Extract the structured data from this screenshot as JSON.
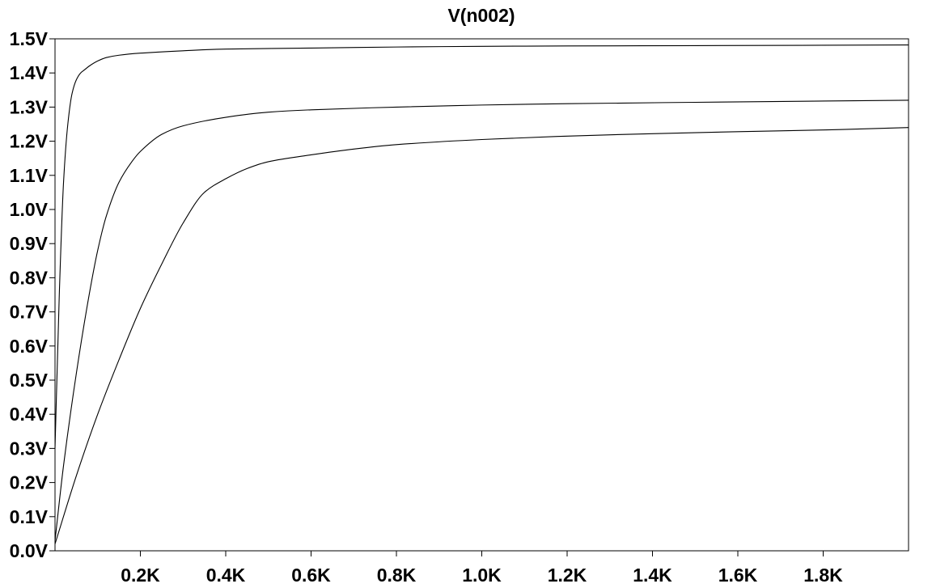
{
  "chart_data": {
    "type": "line",
    "title": "V(n002)",
    "xlabel": "",
    "ylabel": "",
    "xlim": [
      0,
      2000
    ],
    "ylim": [
      0,
      1.5
    ],
    "x_ticks": [
      {
        "value": 200,
        "label": "0.2K"
      },
      {
        "value": 400,
        "label": "0.4K"
      },
      {
        "value": 600,
        "label": "0.6K"
      },
      {
        "value": 800,
        "label": "0.8K"
      },
      {
        "value": 1000,
        "label": "1.0K"
      },
      {
        "value": 1200,
        "label": "1.2K"
      },
      {
        "value": 1400,
        "label": "1.4K"
      },
      {
        "value": 1600,
        "label": "1.6K"
      },
      {
        "value": 1800,
        "label": "1.8K"
      }
    ],
    "y_ticks": [
      {
        "value": 0.0,
        "label": "0.0V"
      },
      {
        "value": 0.1,
        "label": "0.1V"
      },
      {
        "value": 0.2,
        "label": "0.2V"
      },
      {
        "value": 0.3,
        "label": "0.3V"
      },
      {
        "value": 0.4,
        "label": "0.4V"
      },
      {
        "value": 0.5,
        "label": "0.5V"
      },
      {
        "value": 0.6,
        "label": "0.6V"
      },
      {
        "value": 0.7,
        "label": "0.7V"
      },
      {
        "value": 0.8,
        "label": "0.8V"
      },
      {
        "value": 0.9,
        "label": "0.9V"
      },
      {
        "value": 1.0,
        "label": "1.0V"
      },
      {
        "value": 1.1,
        "label": "1.1V"
      },
      {
        "value": 1.2,
        "label": "1.2V"
      },
      {
        "value": 1.3,
        "label": "1.3V"
      },
      {
        "value": 1.4,
        "label": "1.4V"
      },
      {
        "value": 1.5,
        "label": "1.5V"
      }
    ],
    "grid": false,
    "series": [
      {
        "color": "#000000",
        "x": [
          0,
          10,
          20,
          30,
          40,
          50,
          60,
          70,
          80,
          100,
          120,
          150,
          200,
          300,
          400,
          600,
          800,
          1000,
          1200,
          1500,
          2000
        ],
        "y": [
          0.3,
          0.75,
          1.08,
          1.25,
          1.34,
          1.38,
          1.4,
          1.41,
          1.42,
          1.435,
          1.445,
          1.452,
          1.458,
          1.465,
          1.47,
          1.473,
          1.476,
          1.478,
          1.479,
          1.48,
          1.482
        ]
      },
      {
        "color": "#000000",
        "x": [
          0,
          20,
          50,
          80,
          100,
          120,
          150,
          180,
          200,
          250,
          300,
          400,
          500,
          600,
          800,
          1000,
          1200,
          1500,
          2000
        ],
        "y": [
          0.03,
          0.25,
          0.52,
          0.75,
          0.88,
          0.98,
          1.08,
          1.14,
          1.17,
          1.22,
          1.245,
          1.27,
          1.285,
          1.292,
          1.3,
          1.306,
          1.31,
          1.314,
          1.32
        ]
      },
      {
        "color": "#000000",
        "x": [
          0,
          50,
          100,
          150,
          200,
          250,
          300,
          350,
          400,
          450,
          500,
          600,
          700,
          800,
          1000,
          1200,
          1400,
          1600,
          1800,
          2000
        ],
        "y": [
          0.02,
          0.22,
          0.4,
          0.56,
          0.71,
          0.84,
          0.96,
          1.05,
          1.09,
          1.12,
          1.14,
          1.16,
          1.177,
          1.19,
          1.205,
          1.215,
          1.222,
          1.228,
          1.233,
          1.24
        ]
      }
    ]
  }
}
